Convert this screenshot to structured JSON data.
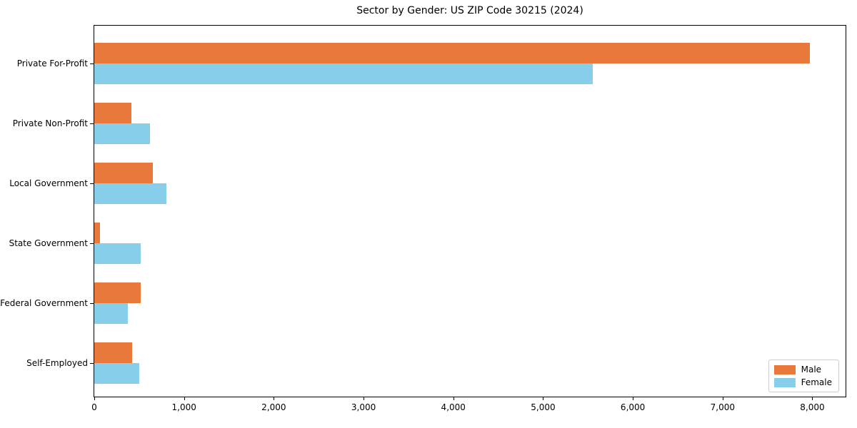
{
  "chart_data": {
    "type": "bar",
    "orientation": "horizontal",
    "title": "Sector by Gender: US ZIP Code 30215 (2024)",
    "categories": [
      "Private For-Profit",
      "Private Non-Profit",
      "Local Government",
      "State Government",
      "Federal Government",
      "Self-Employed"
    ],
    "series": [
      {
        "name": "Male",
        "color": "#E8793B",
        "values": [
          7970,
          415,
          650,
          60,
          520,
          420
        ]
      },
      {
        "name": "Female",
        "color": "#87CEEB",
        "values": [
          5550,
          620,
          800,
          520,
          370,
          500
        ]
      }
    ],
    "xlabel": "",
    "ylabel": "",
    "xlim": [
      0,
      8370
    ],
    "x_tick_values": [
      0,
      1000,
      2000,
      3000,
      4000,
      5000,
      6000,
      7000,
      8000
    ],
    "x_tick_labels": [
      "0",
      "1,000",
      "2,000",
      "3,000",
      "4,000",
      "5,000",
      "6,000",
      "7,000",
      "8,000"
    ],
    "grid": false,
    "legend": {
      "position": "lower right"
    },
    "colors": {
      "background": "#ffffff",
      "axis": "#000000",
      "legend_border": "#cccccc"
    }
  }
}
